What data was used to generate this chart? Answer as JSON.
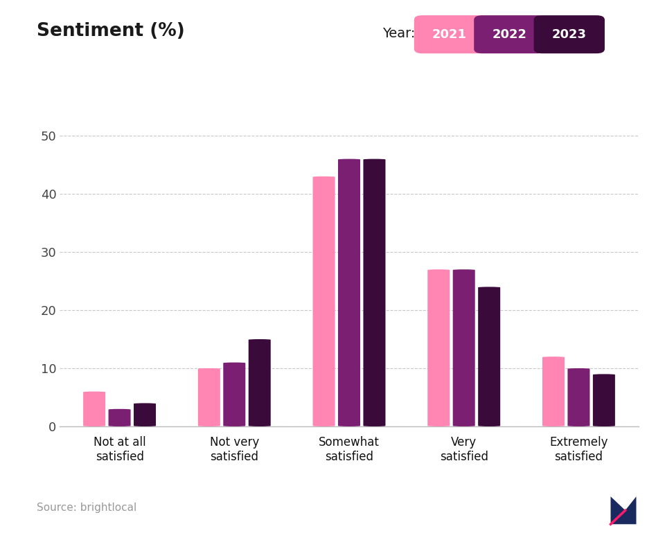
{
  "title": "Sentiment (%)",
  "title_underline_color": "#FF1B6B",
  "year_label": "Year:",
  "years": [
    "2021",
    "2022",
    "2023"
  ],
  "categories": [
    "Not at all\nsatisfied",
    "Not very\nsatisfied",
    "Somewhat\nsatisfied",
    "Very\nsatisfied",
    "Extremely\nsatisfied"
  ],
  "values": {
    "2021": [
      6,
      10,
      43,
      27,
      12
    ],
    "2022": [
      3,
      11,
      46,
      27,
      10
    ],
    "2023": [
      4,
      15,
      46,
      24,
      9
    ]
  },
  "bar_colors": {
    "2021": "#FF85B3",
    "2022": "#7B1F72",
    "2023": "#3A0A3A"
  },
  "badge_colors": {
    "2021": "#FF85B3",
    "2022": "#7B1F72",
    "2023": "#3A0A3A"
  },
  "ylim": [
    0,
    55
  ],
  "yticks": [
    0,
    10,
    20,
    30,
    40,
    50
  ],
  "background_color": "#FFFFFF",
  "footer_background": "#EEE8F4",
  "source_text": "Source: brightlocal",
  "grid_color": "#C8C8C8",
  "axis_color": "#BBBBBB"
}
